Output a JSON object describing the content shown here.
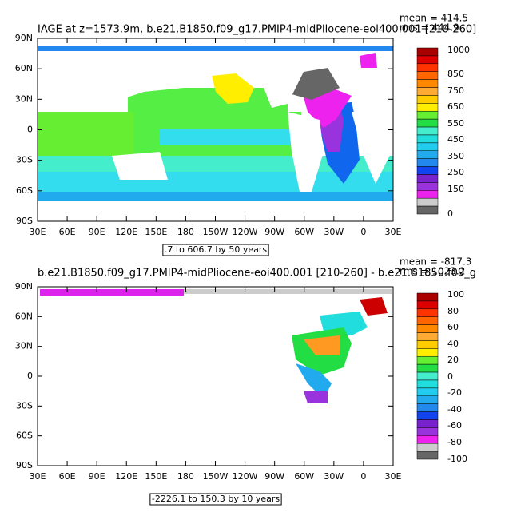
{
  "panels": [
    {
      "title": "IAGE at z=1573.9m, b.e21.B1850.f09_g17.PMIP4-midPliocene-eoi400.001 [210-260]",
      "mean": "mean = 414.5",
      "rms": "rms = 444.9",
      "lat_labels": [
        "90N",
        "60N",
        "30N",
        "0",
        "30S",
        "60S",
        "90S"
      ],
      "lon_labels": [
        "30E",
        "60E",
        "90E",
        "120E",
        "150E",
        "180",
        "150W",
        "120W",
        "90W",
        "60W",
        "30W",
        "0",
        "30E"
      ],
      "colorbar_labels": [
        "1000",
        "850",
        "750",
        "650",
        "550",
        "450",
        "350",
        "250",
        "150",
        "0"
      ],
      "contour_info": ".7 to 606.7 by 50 years"
    },
    {
      "title": "b.e21.B1850.f09_g17.PMIP4-midPliocene-eoi400.001  [210-260] - b.e21.B1850.f09_g",
      "mean": "mean = -817.3",
      "rms": "rms = 1023.2",
      "lat_labels": [
        "90N",
        "60N",
        "30N",
        "0",
        "30S",
        "60S",
        "90S"
      ],
      "lon_labels": [
        "30E",
        "60E",
        "90E",
        "120E",
        "150E",
        "180",
        "150W",
        "120W",
        "90W",
        "60W",
        "30W",
        "0",
        "30E"
      ],
      "colorbar_labels": [
        "100",
        "80",
        "60",
        "40",
        "20",
        "0",
        "-20",
        "-40",
        "-60",
        "-80",
        "-100"
      ],
      "contour_info": "-2226.1 to 150.3 by 10 years"
    }
  ]
}
